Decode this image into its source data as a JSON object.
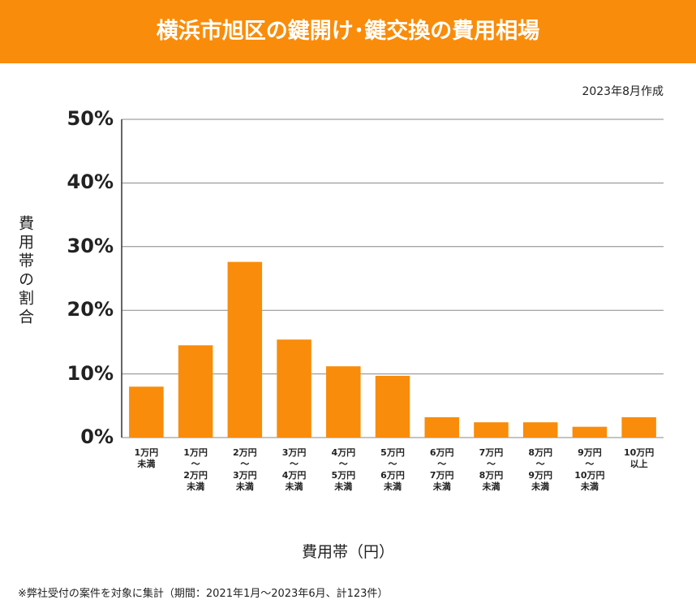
{
  "header": {
    "title": "横浜市旭区の鍵開け･鍵交換の費用相場"
  },
  "note": "2023年8月作成",
  "footnote": "※弊社受付の案件を対象に集計（期間：2021年1月～2023年6月、計123件）",
  "chart_data": {
    "type": "bar",
    "x_label": "費用帯（円）",
    "y_label": "費用帯の割合",
    "categories": [
      "1万円\n未満",
      "1万円\n〜\n2万円\n未満",
      "2万円\n〜\n3万円\n未満",
      "3万円\n〜\n4万円\n未満",
      "4万円\n〜\n5万円\n未満",
      "5万円\n〜\n6万円\n未満",
      "6万円\n〜\n7万円\n未満",
      "7万円\n〜\n8万円\n未満",
      "8万円\n〜\n9万円\n未満",
      "9万円\n〜\n10万円\n未満",
      "10万円\n以上"
    ],
    "values": [
      8.0,
      14.5,
      27.6,
      15.4,
      11.2,
      9.7,
      3.2,
      2.4,
      2.4,
      1.7,
      3.2
    ],
    "color": "#f98c0a",
    "ylim": [
      0,
      50
    ],
    "yticks": [
      {
        "value": 0,
        "label": "0%"
      },
      {
        "value": 10,
        "label": "10%"
      },
      {
        "value": 20,
        "label": "20%"
      },
      {
        "value": 30,
        "label": "30%"
      },
      {
        "value": 40,
        "label": "40%"
      },
      {
        "value": 50,
        "label": "50%"
      }
    ],
    "grid": true
  }
}
